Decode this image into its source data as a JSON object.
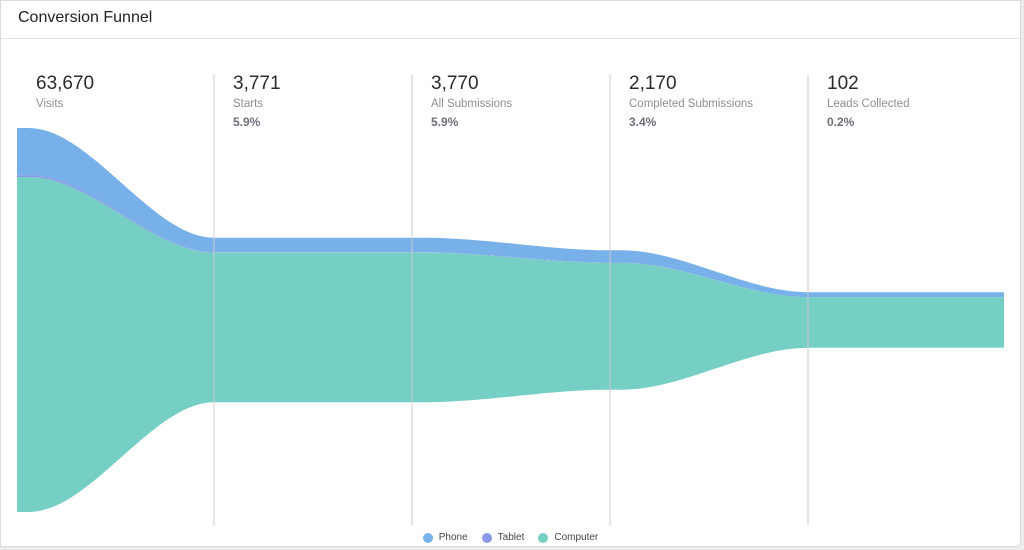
{
  "card": {
    "title": "Conversion Funnel"
  },
  "stages": [
    {
      "count": "63,670",
      "label": "Visits",
      "pct": ""
    },
    {
      "count": "3,771",
      "label": "Starts",
      "pct": "5.9%"
    },
    {
      "count": "3,770",
      "label": "All Submissions",
      "pct": "5.9%"
    },
    {
      "count": "2,170",
      "label": "Completed Submissions",
      "pct": "3.4%"
    },
    {
      "count": "102",
      "label": "Leads Collected",
      "pct": "0.2%"
    }
  ],
  "legend": [
    {
      "label": "Phone",
      "color": "#78b1ea"
    },
    {
      "label": "Tablet",
      "color": "#8b98e8"
    },
    {
      "label": "Computer",
      "color": "#76cfc4"
    }
  ],
  "chart_data": {
    "type": "area",
    "title": "Conversion Funnel",
    "categories": [
      "Visits",
      "Starts",
      "All Submissions",
      "Completed Submissions",
      "Leads Collected"
    ],
    "totals": [
      63670,
      3771,
      3770,
      2170,
      102
    ],
    "series": [
      {
        "name": "Phone",
        "values": [
          7850,
          330,
          330,
          190,
          9
        ],
        "color": "#78b1ea"
      },
      {
        "name": "Tablet",
        "values": [
          270,
          11,
          11,
          6,
          0
        ],
        "color": "#8b98e8"
      },
      {
        "name": "Computer",
        "values": [
          55550,
          3430,
          3429,
          1974,
          93
        ],
        "color": "#76cfc4"
      }
    ],
    "legend_position": "bottom-center",
    "grid": false
  }
}
